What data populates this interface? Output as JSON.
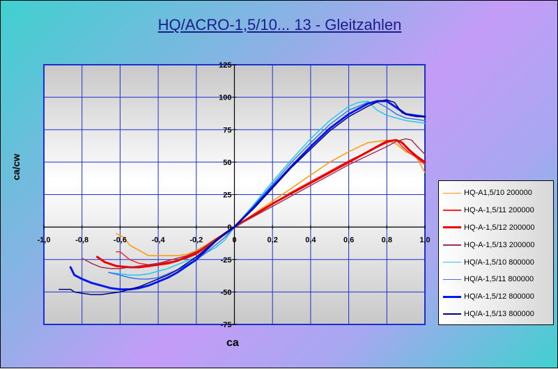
{
  "chart_data": {
    "type": "line",
    "title": "HQ/ACRO-1,5/10... 13 - Gleitzahlen",
    "xlabel": "ca",
    "ylabel": "ca/cw",
    "xlim": [
      -1.0,
      1.0
    ],
    "ylim": [
      -75,
      125
    ],
    "x_ticks": [
      "-1,0",
      "-0,8",
      "-0,6",
      "-0,4",
      "-0,2",
      "0",
      "0,2",
      "0,4",
      "0,6",
      "0,8",
      "1,0"
    ],
    "y_ticks": [
      "125",
      "100",
      "75",
      "50",
      "25",
      "0",
      "-25",
      "-50",
      "-75"
    ],
    "grid": true,
    "legend_position": "right",
    "series": [
      {
        "name": "HQ-A1,5/10 200000",
        "color": "#ff9900",
        "width": 1.5,
        "x": [
          -0.62,
          -0.58,
          -0.55,
          -0.5,
          -0.45,
          -0.4,
          -0.35,
          -0.3,
          -0.25,
          -0.2,
          -0.15,
          -0.1,
          -0.05,
          0,
          0.1,
          0.2,
          0.3,
          0.4,
          0.5,
          0.6,
          0.7,
          0.8,
          0.85,
          0.9,
          0.95,
          1.0
        ],
        "y": [
          -5,
          -8,
          -14,
          -18,
          -22,
          -22,
          -22,
          -22,
          -21,
          -18,
          -14,
          -9,
          -5,
          0,
          10,
          20,
          30,
          40,
          50,
          58,
          65,
          67,
          64,
          58,
          55,
          42
        ]
      },
      {
        "name": "HQ-A-1,5/11 200000",
        "color": "#ff2020",
        "width": 1.5,
        "x": [
          -0.62,
          -0.6,
          -0.55,
          -0.5,
          -0.45,
          -0.4,
          -0.35,
          -0.3,
          -0.25,
          -0.2,
          -0.15,
          -0.1,
          -0.05,
          0,
          0.1,
          0.2,
          0.3,
          0.4,
          0.5,
          0.6,
          0.7,
          0.8,
          0.85,
          0.88,
          0.92,
          0.96,
          1.0
        ],
        "y": [
          -19,
          -19,
          -25,
          -28,
          -29,
          -28,
          -27,
          -26,
          -24,
          -21,
          -16,
          -11,
          -6,
          0,
          9,
          18,
          27,
          35,
          43,
          51,
          58,
          65,
          67,
          62,
          57,
          53,
          48
        ]
      },
      {
        "name": "HQ-A-1,5/12 200000",
        "color": "#e80000",
        "width": 3,
        "x": [
          -0.72,
          -0.68,
          -0.62,
          -0.55,
          -0.5,
          -0.45,
          -0.4,
          -0.35,
          -0.3,
          -0.25,
          -0.2,
          -0.15,
          -0.1,
          -0.05,
          0,
          0.1,
          0.2,
          0.3,
          0.4,
          0.5,
          0.6,
          0.7,
          0.75,
          0.8,
          0.85,
          0.88,
          0.92,
          0.96,
          1.0
        ],
        "y": [
          -23,
          -27,
          -30,
          -31,
          -31,
          -30,
          -29,
          -28,
          -26,
          -23,
          -20,
          -15,
          -10,
          -5,
          0,
          9,
          18,
          26,
          34,
          42,
          50,
          58,
          62,
          66,
          67,
          65,
          59,
          54,
          50
        ]
      },
      {
        "name": "HQ-A-1,5/13 200000",
        "color": "#a03050",
        "width": 1.5,
        "x": [
          -0.8,
          -0.75,
          -0.7,
          -0.65,
          -0.6,
          -0.55,
          -0.5,
          -0.45,
          -0.4,
          -0.35,
          -0.3,
          -0.25,
          -0.2,
          -0.15,
          -0.1,
          -0.05,
          0,
          0.1,
          0.2,
          0.3,
          0.4,
          0.5,
          0.6,
          0.7,
          0.8,
          0.85,
          0.9,
          0.93,
          0.96,
          1.0
        ],
        "y": [
          -24,
          -28,
          -31,
          -32,
          -32,
          -31,
          -30,
          -29,
          -28,
          -26,
          -24,
          -22,
          -19,
          -15,
          -10,
          -5,
          0,
          8,
          16,
          24,
          32,
          40,
          48,
          55,
          62,
          66,
          68,
          67,
          62,
          56
        ]
      },
      {
        "name": "HQ/A-1,5/10 800000",
        "color": "#20c8f0",
        "width": 1.5,
        "x": [
          -0.66,
          -0.6,
          -0.55,
          -0.5,
          -0.45,
          -0.4,
          -0.35,
          -0.3,
          -0.25,
          -0.2,
          -0.15,
          -0.1,
          -0.05,
          0,
          0.1,
          0.2,
          0.3,
          0.4,
          0.5,
          0.6,
          0.65,
          0.7,
          0.72,
          0.75,
          0.8,
          0.85,
          0.9,
          0.95,
          1.0
        ],
        "y": [
          -35,
          -36,
          -37,
          -37,
          -36,
          -34,
          -32,
          -29,
          -26,
          -23,
          -20,
          -16,
          -10,
          0,
          17,
          35,
          52,
          68,
          82,
          93,
          96,
          97,
          94,
          90,
          86,
          84,
          82,
          81,
          80
        ]
      },
      {
        "name": "HQ/A-1,5/11 800000",
        "color": "#3a72ea",
        "width": 1.5,
        "x": [
          -0.66,
          -0.6,
          -0.55,
          -0.5,
          -0.45,
          -0.4,
          -0.35,
          -0.3,
          -0.25,
          -0.2,
          -0.15,
          -0.1,
          -0.05,
          0,
          0.1,
          0.2,
          0.3,
          0.4,
          0.5,
          0.6,
          0.7,
          0.75,
          0.8,
          0.85,
          0.9,
          0.95,
          1.0
        ],
        "y": [
          -35,
          -37,
          -39,
          -40,
          -40,
          -39,
          -36,
          -33,
          -29,
          -25,
          -20,
          -14,
          -8,
          0,
          16,
          33,
          50,
          65,
          79,
          90,
          96,
          96,
          92,
          87,
          84,
          83,
          82
        ]
      },
      {
        "name": "HQ/A-1,5/12 800000",
        "color": "#0018f0",
        "width": 3,
        "x": [
          -0.86,
          -0.84,
          -0.8,
          -0.75,
          -0.7,
          -0.65,
          -0.6,
          -0.55,
          -0.5,
          -0.45,
          -0.4,
          -0.35,
          -0.3,
          -0.25,
          -0.2,
          -0.15,
          -0.1,
          -0.05,
          0,
          0.1,
          0.2,
          0.3,
          0.4,
          0.5,
          0.6,
          0.7,
          0.75,
          0.8,
          0.85,
          0.9,
          0.95,
          1.0
        ],
        "y": [
          -31,
          -37,
          -40,
          -43,
          -45,
          -47,
          -48,
          -48,
          -47,
          -45,
          -42,
          -39,
          -35,
          -30,
          -25,
          -18,
          -11,
          -5,
          0,
          15,
          31,
          47,
          62,
          76,
          87,
          95,
          97,
          97,
          92,
          87,
          86,
          85
        ]
      },
      {
        "name": "HQ/A-1,5/13 800000",
        "color": "#00007a",
        "width": 1.5,
        "x": [
          -0.92,
          -0.86,
          -0.84,
          -0.8,
          -0.75,
          -0.7,
          -0.65,
          -0.6,
          -0.55,
          -0.5,
          -0.45,
          -0.4,
          -0.35,
          -0.3,
          -0.25,
          -0.2,
          -0.15,
          -0.1,
          -0.05,
          0,
          0.1,
          0.2,
          0.3,
          0.4,
          0.5,
          0.6,
          0.7,
          0.76,
          0.8,
          0.84,
          0.88,
          0.92,
          0.96,
          1.0
        ],
        "y": [
          -48,
          -48,
          -50,
          -51,
          -52,
          -52,
          -51,
          -50,
          -48,
          -46,
          -43,
          -40,
          -37,
          -33,
          -28,
          -23,
          -17,
          -11,
          -5,
          0,
          14,
          30,
          46,
          60,
          74,
          85,
          93,
          97,
          98,
          96,
          88,
          86,
          85,
          85
        ]
      }
    ]
  }
}
